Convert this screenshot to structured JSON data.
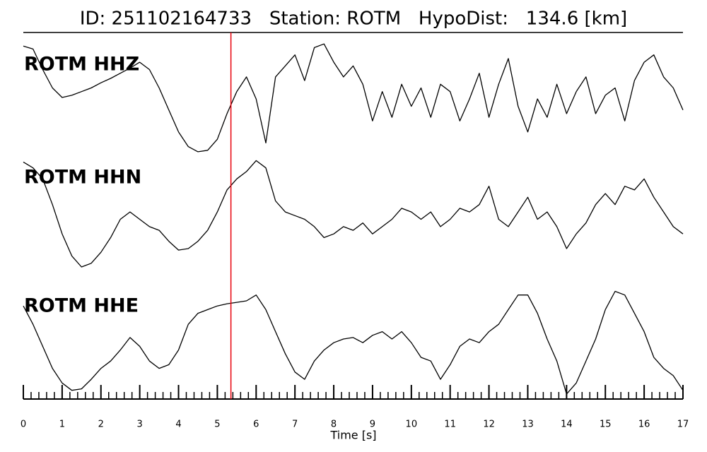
{
  "chart_data": {
    "type": "line",
    "title": "ID: 251102164733   Station: ROTM   HypoDist:   134.6 [km]",
    "xlabel": "Time [s]",
    "xlim": [
      0,
      17
    ],
    "xticks": [
      0,
      1,
      2,
      3,
      4,
      5,
      6,
      7,
      8,
      9,
      10,
      11,
      12,
      13,
      14,
      15,
      16,
      17
    ],
    "xminor": 0.2,
    "pick": {
      "x": 5.35,
      "color": "#e8000b"
    },
    "label_color": "#4a9a0a",
    "x": [
      0,
      0.25,
      0.5,
      0.75,
      1,
      1.25,
      1.5,
      1.75,
      2,
      2.25,
      2.5,
      2.75,
      3,
      3.25,
      3.5,
      3.75,
      4,
      4.25,
      4.5,
      4.75,
      5,
      5.25,
      5.5,
      5.75,
      6,
      6.25,
      6.5,
      6.75,
      7,
      7.25,
      7.5,
      7.75,
      8,
      8.25,
      8.5,
      8.75,
      9,
      9.25,
      9.5,
      9.75,
      10,
      10.25,
      10.5,
      10.75,
      11,
      11.25,
      11.5,
      11.75,
      12,
      12.25,
      12.5,
      12.75,
      13,
      13.25,
      13.5,
      13.75,
      14,
      14.25,
      14.5,
      14.75,
      15,
      15.25,
      15.5,
      15.75,
      16,
      16.25,
      16.5,
      16.75,
      17
    ],
    "series": [
      {
        "name": "ROTM HHZ",
        "color": "#000000",
        "values": [
          70,
          66,
          38,
          13,
          0,
          3,
          8,
          13,
          20,
          26,
          33,
          40,
          48,
          38,
          13,
          -17,
          -47,
          -67,
          -74,
          -72,
          -57,
          -22,
          8,
          28,
          -2,
          -62,
          28,
          43,
          58,
          23,
          68,
          73,
          48,
          28,
          43,
          18,
          -32,
          8,
          -27,
          18,
          -12,
          13,
          -27,
          18,
          8,
          -32,
          -2,
          33,
          -27,
          18,
          53,
          -12,
          -47,
          -2,
          -27,
          18,
          -22,
          8,
          28,
          -22,
          3,
          13,
          -32,
          23,
          48,
          58,
          28,
          13,
          -17
        ]
      },
      {
        "name": "ROTM HHN",
        "color": "#000000",
        "values": [
          66,
          58,
          43,
          8,
          -32,
          -62,
          -77,
          -72,
          -57,
          -37,
          -12,
          -2,
          -12,
          -22,
          -27,
          -42,
          -54,
          -52,
          -42,
          -27,
          -2,
          28,
          43,
          53,
          68,
          58,
          13,
          -2,
          -7,
          -12,
          -22,
          -37,
          -32,
          -22,
          -27,
          -17,
          -32,
          -22,
          -12,
          3,
          -2,
          -12,
          -2,
          -22,
          -12,
          3,
          -2,
          8,
          33,
          -12,
          -22,
          -2,
          18,
          -12,
          -2,
          -22,
          -52,
          -32,
          -17,
          8,
          23,
          8,
          33,
          28,
          43,
          18,
          -2,
          -22,
          -32
        ]
      },
      {
        "name": "ROTM HHE",
        "color": "#000000",
        "values": [
          45,
          20,
          -10,
          -40,
          -60,
          -70,
          -68,
          -55,
          -40,
          -30,
          -15,
          2,
          -10,
          -30,
          -40,
          -35,
          -15,
          20,
          35,
          40,
          45,
          48,
          50,
          52,
          60,
          40,
          10,
          -20,
          -45,
          -55,
          -30,
          -15,
          -5,
          0,
          2,
          -5,
          5,
          10,
          0,
          10,
          -5,
          -25,
          -30,
          -55,
          -35,
          -10,
          0,
          -5,
          10,
          20,
          40,
          60,
          60,
          35,
          0,
          -30,
          -75,
          -60,
          -30,
          0,
          40,
          65,
          60,
          35,
          10,
          -25,
          -40,
          -50,
          -70
        ]
      }
    ]
  }
}
